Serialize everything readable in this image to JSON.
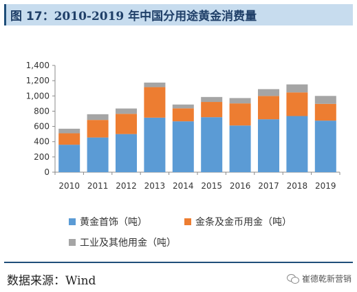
{
  "header": {
    "fig_label": "图 17：",
    "fig_title": "2010-2019 年中国分用途黄金消费量"
  },
  "chart_data": {
    "type": "bar",
    "stacked": true,
    "categories": [
      "2010",
      "2011",
      "2012",
      "2013",
      "2014",
      "2015",
      "2016",
      "2017",
      "2018",
      "2019"
    ],
    "series": [
      {
        "name": "黄金首饰（吨）",
        "color": "#5b9bd5",
        "values": [
          360,
          455,
          500,
          715,
          667,
          721,
          612,
          694,
          736,
          676
        ]
      },
      {
        "name": "金条及金币用金（吨）",
        "color": "#ed7d31",
        "values": [
          150,
          230,
          265,
          400,
          170,
          200,
          290,
          305,
          310,
          220
        ]
      },
      {
        "name": "工业及其他用金（吨）",
        "color": "#a5a5a5",
        "values": [
          60,
          75,
          70,
          60,
          50,
          65,
          70,
          90,
          105,
          104
        ]
      }
    ],
    "ylim": [
      0,
      1400
    ],
    "yticks": [
      0,
      200,
      400,
      600,
      800,
      1000,
      1200,
      1400
    ],
    "ytick_labels": [
      "0",
      "200",
      "400",
      "600",
      "800",
      "1,000",
      "1,200",
      "1,400"
    ],
    "legend_position": "bottom",
    "grid": false
  },
  "footer": {
    "source": "数据来源：Wind",
    "watermark": "崔德乾新营销"
  }
}
